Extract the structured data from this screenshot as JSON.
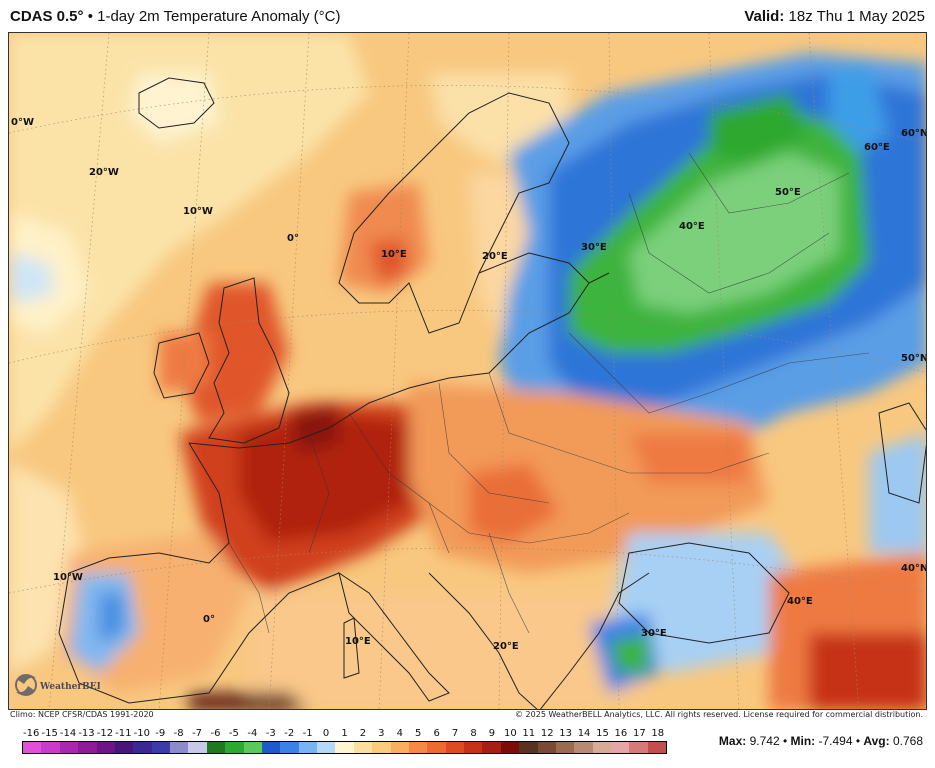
{
  "header": {
    "model": "CDAS 0.5°",
    "separator": " • ",
    "product": "1-day 2m Temperature Anomaly (°C)",
    "valid_label": "Valid:",
    "valid_time": " 18z Thu 1 May 2025"
  },
  "footer": {
    "climo": "Climo: NCEP CFSR/CDAS 1991-2020",
    "copyright": "© 2025 WeatherBELL Analytics, LLC. All rights reserved. License required for commercial distribution."
  },
  "stats": {
    "max_label": "Max:",
    "max_value": " 9.742",
    "min_label": "Min:",
    "min_value": " -7.494",
    "avg_label": "Avg:",
    "avg_value": " 0.768",
    "sep": " • "
  },
  "logo": {
    "text": "WeatherBELL",
    "icon": "hurricane-swirl-icon"
  },
  "grid_labels": {
    "w30": "0°W",
    "w20": "20°W",
    "w10": "10°W",
    "zero": "0°",
    "e10": "10°E",
    "e20": "20°E",
    "e30": "30°E",
    "e40": "40°E",
    "e50": "50°E",
    "e60": "60°E",
    "n60": "60°N",
    "n50": "50°N",
    "n40": "40°N",
    "w10s": "10°W",
    "zero_s": "0°",
    "e10s": "10°E",
    "e20s": "20°E",
    "e30s": "30°E",
    "e40s": "40°E"
  },
  "colorbar": {
    "ticks": [
      "-16",
      "-15",
      "-14",
      "-13",
      "-12",
      "-11",
      "-10",
      "-9",
      "-8",
      "-7",
      "-6",
      "-5",
      "-4",
      "-3",
      "-2",
      "-1",
      "0",
      "1",
      "2",
      "3",
      "4",
      "5",
      "6",
      "7",
      "8",
      "9",
      "10",
      "11",
      "12",
      "13",
      "14",
      "15",
      "16",
      "17",
      "18"
    ],
    "colors": [
      "#e050d8",
      "#c83cc8",
      "#a828b0",
      "#8c1c98",
      "#6c1488",
      "#4a1478",
      "#3c2890",
      "#3c3ca8",
      "#8c8cc8",
      "#c8c8e8",
      "#1e7a1e",
      "#2ea82e",
      "#5ac85a",
      "#1e5ac8",
      "#3c82e6",
      "#78b4f0",
      "#b4d8f8",
      "#fff6d0",
      "#fde0a0",
      "#fccc7c",
      "#faae62",
      "#f58a46",
      "#ee6a32",
      "#de4a22",
      "#c63218",
      "#a81e10",
      "#7c0c08",
      "#5a3222",
      "#7a4a36",
      "#9a6a52",
      "#b88a74",
      "#d6ac96",
      "#e6a6a6",
      "#d47a7a",
      "#c24e4e"
    ],
    "max_tick": "18"
  }
}
